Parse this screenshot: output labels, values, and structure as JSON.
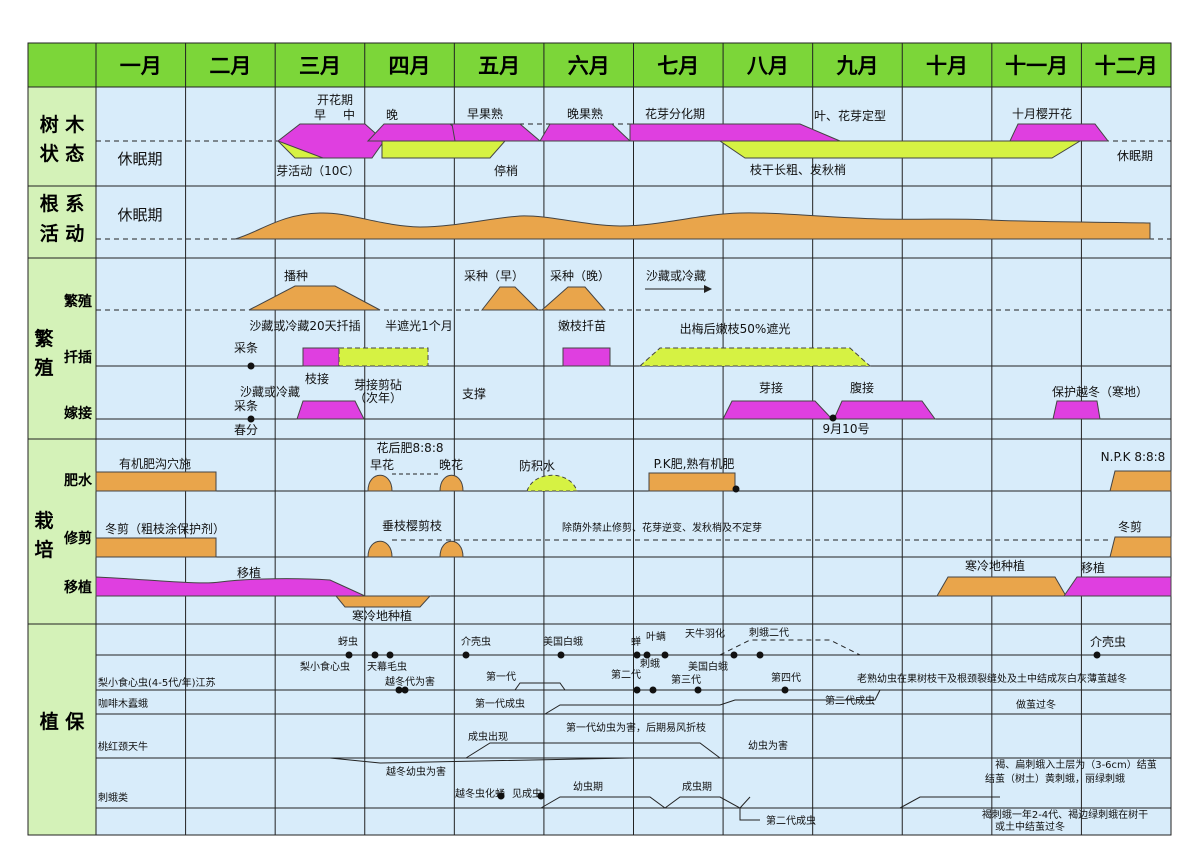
{
  "months": [
    "一月",
    "二月",
    "三月",
    "四月",
    "五月",
    "六月",
    "七月",
    "八月",
    "九月",
    "十月",
    "十一月",
    "十二月"
  ],
  "sections": {
    "tree": {
      "label1": "树 木",
      "label2": "状 态"
    },
    "root": {
      "label1": "根 系",
      "label2": "活 动"
    },
    "breed": {
      "label1": "繁",
      "label2": "殖",
      "sub1": "繁殖",
      "sub2": "扦插",
      "sub3": "嫁接"
    },
    "cult": {
      "label1": "栽",
      "label2": "培",
      "sub1": "肥水",
      "sub2": "修剪",
      "sub3": "移植"
    },
    "protect": {
      "label": "植 保"
    }
  },
  "tree_texts": {
    "bloom": "开花期",
    "early": "早",
    "mid": "中",
    "late": "晚",
    "early_ripe": "早果熟",
    "late_ripe": "晚果熟",
    "bud_diff": "花芽分化期",
    "leaf_bud": "叶、花芽定型",
    "oct_bloom": "十月樱开花",
    "dormant_left": "休眠期",
    "dormant_right": "休眠期",
    "bud_active": "芽活动（10C）",
    "stop_shoot": "停梢",
    "branch_grow": "枝干长粗、发秋梢"
  },
  "root_texts": {
    "dormant": "休眠期"
  },
  "breed_texts": {
    "sow": "播种",
    "pick_early": "采种（早）",
    "pick_late": "采种（晚）",
    "sand_store": "沙藏或冷藏",
    "sand_20": "沙藏或冷藏20天扦插",
    "half_shade": "半遮光1个月",
    "cut_branch": "采条",
    "tender_cutting": "嫩枝扦苗",
    "shade50": "出梅后嫩枝50%遮光",
    "graft_branch": "枝接",
    "bud_cut": "芽接剪砧",
    "next_year": "（次年）",
    "sand_store2": "沙藏或冷藏",
    "cut_branch2": "采条",
    "spring": "春分",
    "support": "支撑",
    "bud_graft": "芽接",
    "belly_graft": "腹接",
    "sep10": "9月10号",
    "winter_protect": "保护越冬（寒地）"
  },
  "cult_texts": {
    "organic": "有机肥沟穴施",
    "after_bloom": "花后肥8:8:8",
    "early_flower": "早花",
    "late_flower": "晚花",
    "anti_water": "防积水",
    "pk": "P.K肥,熟有机肥",
    "npk": "N.P.K 8:8:8",
    "winter_prune": "冬剪（粗枝涂保护剂）",
    "weeping_prune": "垂枝樱剪枝",
    "no_prune": "除荫外禁止修剪、花芽逆变、发秋梢及不定芽",
    "winter_prune2": "冬剪",
    "transplant": "移植",
    "cold_plant": "寒冷地种植",
    "cold_plant2": "寒冷地种植",
    "transplant2": "移植"
  },
  "protect_texts": {
    "aphid": "蚜虫",
    "pear_borer_short": "梨小食心虫",
    "tent_cat": "天幕毛虫",
    "overwinter_harm": "越冬代为害",
    "scale": "介壳虫",
    "am_moth": "美国白蛾",
    "cicada": "蝉",
    "mite": "叶螨",
    "sting_moth": "刺蛾",
    "longhorn_feather": "天牛羽化",
    "sting2": "刺蛾二代",
    "am_moth2": "美国白蛾",
    "gen1": "第一代",
    "gen2": "第二代",
    "gen3": "第三代",
    "gen4": "第四代",
    "scale2": "介壳虫",
    "pear_borer": "梨小食心虫(4-5代/年)江苏",
    "pear_winter": "老熟幼虫在果树枝干及根颈裂缝处及土中结成灰白灰薄茧越冬",
    "coffee_moth": "咖啡木蠹蛾",
    "gen1_adult": "第一代成虫",
    "gen1_larva": "第一代幼虫为害，后期易风折枝",
    "gen2_adult": "第二代成虫",
    "cocoon_winter": "做茧过冬",
    "peach_longhorn": "桃红颈天牛",
    "adult_appear": "成虫出现",
    "larva_harm": "幼虫为害",
    "overwinter_larva": "越冬幼虫为害",
    "sting_class": "刺蛾类",
    "pupa": "越冬虫化蛹",
    "see_adult": "见成虫",
    "larva_period": "幼虫期",
    "adult_period": "成虫期",
    "gen2_adult_b": "第二代成虫",
    "brown_note1": "褐、扁刺蛾入土层为（3-6cm）结茧",
    "brown_note2": "结茧（树土）黄刺蛾，丽绿刺蛾",
    "brown_note3": "褐刺蛾一年2-4代、褐边绿刺蛾在树干",
    "brown_note4": "或土中结茧过冬"
  },
  "colors": {
    "header_green": "#7cd639",
    "label_green": "#d4f2b8",
    "body_blue": "#d8ecfa",
    "orange": "#e9a54b",
    "magenta": "#df3fe0",
    "lime": "#d6f243"
  }
}
